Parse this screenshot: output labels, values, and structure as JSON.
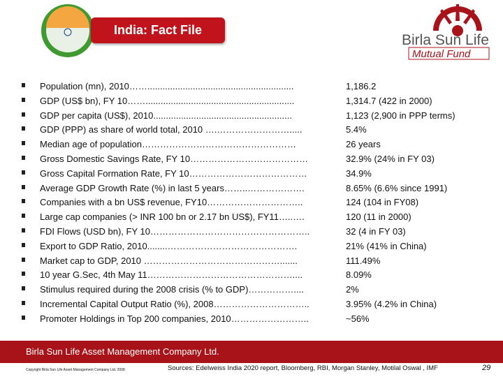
{
  "header": {
    "title": "India: Fact File",
    "logo_name": "Birla Sun Life",
    "logo_tagline": "Mutual Fund"
  },
  "facts": [
    {
      "label": "Population (mn), 2010……..........................................................",
      "value": "1,186.2"
    },
    {
      "label": "GDP (US$ bn), FY 10……...........................................................",
      "value": "1,314.7 (422 in 2000)"
    },
    {
      "label": "GDP per capita (US$), 2010.......................................................",
      "value": "1,123 (2,900 in PPP terms)"
    },
    {
      "label": "GDP (PPP) as share of world total, 2010 ….…………………….....",
      "value": "5.4%"
    },
    {
      "label": "Median age of population……………………………………………",
      "value": "26 years"
    },
    {
      "label": "Gross Domestic Savings Rate, FY 10…………………………………",
      "value": "32.9% (24% in FY 03)"
    },
    {
      "label": "Gross Capital Formation Rate, FY 10…………………………………",
      "value": "34.9%"
    },
    {
      "label": "Average GDP Growth Rate (%) in last 5 years……..……………….",
      "value": "8.65% (6.6% since 1991)"
    },
    {
      "label": "Companies with a bn US$ revenue, FY10…………………………..",
      "value": "124 (104 in FY08)"
    },
    {
      "label": "Large cap companies (> INR 100 bn or 2.17 bn US$), FY11…..….",
      "value": "120 (11 in 2000)"
    },
    {
      "label": "FDI Flows (USD bn), FY 10……………………………………………..",
      "value": "32 (4 in FY 03)"
    },
    {
      "label": "Export to GDP Ratio, 2010........…………………………………….",
      "value": "21% (41% in China)"
    },
    {
      "label": "Market cap to GDP, 2010 ……………………………………….......",
      "value": "111.49%"
    },
    {
      "label": "10 year G.Sec, 4th May 11…………………………………………....",
      "value": "8.09%"
    },
    {
      "label": "Stimulus required during the 2008 crisis (% to GDP)……………....",
      "value": "2%"
    },
    {
      "label": "Incremental Capital Output Ratio (%), 2008…………………………..",
      "value": "3.95% (4.2% in China)"
    },
    {
      "label": "Promoter Holdings in Top 200 companies, 2010……………………..",
      "value": "~56%"
    }
  ],
  "footer": {
    "company": "Birla Sun Life Asset Management Company Ltd.",
    "copyright": "Copyright Birla Sun Life Asset Management Company Ltd. 2008",
    "sources": "Sources: Edelweiss India 2020 report, Bloomberg, RBI, Morgan Stanley, Motilal Oswal , IMF",
    "page": "29"
  }
}
